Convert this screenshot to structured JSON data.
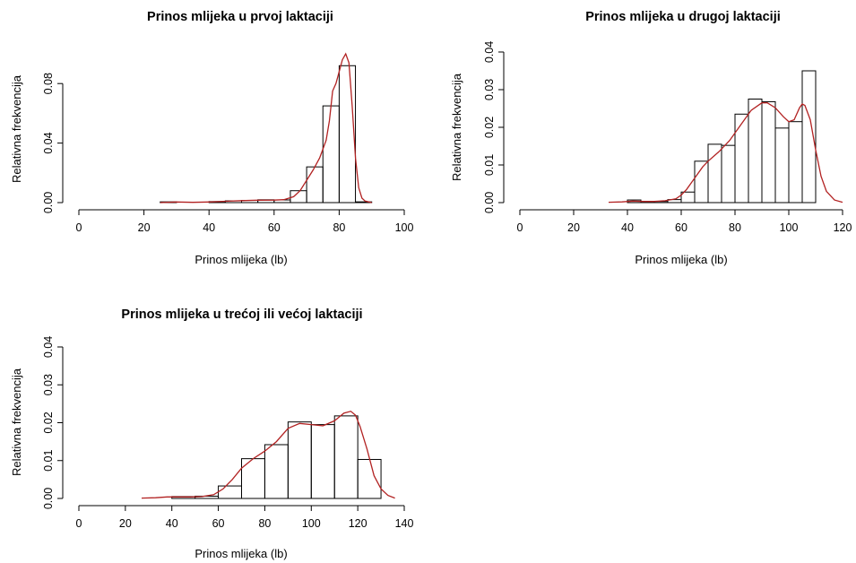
{
  "chart_data": [
    {
      "type": "histogram",
      "title": "Prinos mlijeka u prvoj laktaciji",
      "xlabel": "Prinos mlijeka (lb)",
      "ylabel": "Relativna frekvencija",
      "xlim": [
        0,
        100
      ],
      "ylim": [
        0,
        0.1
      ],
      "xticks": [
        "0",
        "20",
        "40",
        "60",
        "80",
        "100"
      ],
      "yticks": [
        "0.00",
        "0.04",
        "0.08"
      ],
      "bins": [
        {
          "from": 25,
          "to": 30,
          "value": 0.0005
        },
        {
          "from": 30,
          "to": 35,
          "value": 0.0
        },
        {
          "from": 35,
          "to": 40,
          "value": 0.0
        },
        {
          "from": 40,
          "to": 45,
          "value": 0.0007
        },
        {
          "from": 45,
          "to": 50,
          "value": 0.0012
        },
        {
          "from": 50,
          "to": 55,
          "value": 0.0015
        },
        {
          "from": 55,
          "to": 60,
          "value": 0.0019
        },
        {
          "from": 60,
          "to": 65,
          "value": 0.0018
        },
        {
          "from": 65,
          "to": 70,
          "value": 0.008
        },
        {
          "from": 70,
          "to": 75,
          "value": 0.024
        },
        {
          "from": 75,
          "to": 80,
          "value": 0.065
        },
        {
          "from": 80,
          "to": 85,
          "value": 0.092
        },
        {
          "from": 85,
          "to": 90,
          "value": 0.0005
        }
      ],
      "density": {
        "color": "#b22222",
        "x": [
          25,
          30,
          35,
          40,
          45,
          50,
          55,
          60,
          63,
          66,
          68,
          70,
          72,
          74,
          76,
          77,
          78,
          79,
          80,
          81,
          82,
          83,
          84,
          85,
          86,
          87,
          88,
          90
        ],
        "y": [
          0.0,
          0.0004,
          0.0002,
          0.0004,
          0.0009,
          0.0013,
          0.0016,
          0.0017,
          0.002,
          0.004,
          0.008,
          0.015,
          0.022,
          0.03,
          0.042,
          0.055,
          0.075,
          0.08,
          0.088,
          0.096,
          0.1,
          0.094,
          0.065,
          0.03,
          0.01,
          0.003,
          0.001,
          0.0
        ]
      }
    },
    {
      "type": "histogram",
      "title": "Prinos mlijeka u drugoj laktaciji",
      "xlabel": "Prinos mlijeka (lb)",
      "ylabel": "Relativna frekvencija",
      "xlim": [
        0,
        120
      ],
      "ylim": [
        0,
        0.04
      ],
      "xticks": [
        "0",
        "20",
        "40",
        "60",
        "80",
        "100",
        "120"
      ],
      "yticks": [
        "0.00",
        "0.01",
        "0.02",
        "0.03",
        "0.04"
      ],
      "bins": [
        {
          "from": 40,
          "to": 45,
          "value": 0.0007
        },
        {
          "from": 45,
          "to": 50,
          "value": 0.0003
        },
        {
          "from": 50,
          "to": 55,
          "value": 0.0003
        },
        {
          "from": 55,
          "to": 60,
          "value": 0.0008
        },
        {
          "from": 60,
          "to": 65,
          "value": 0.0028
        },
        {
          "from": 65,
          "to": 70,
          "value": 0.011
        },
        {
          "from": 70,
          "to": 75,
          "value": 0.0155
        },
        {
          "from": 75,
          "to": 80,
          "value": 0.0152
        },
        {
          "from": 80,
          "to": 85,
          "value": 0.0235
        },
        {
          "from": 85,
          "to": 90,
          "value": 0.0275
        },
        {
          "from": 90,
          "to": 95,
          "value": 0.0268
        },
        {
          "from": 95,
          "to": 100,
          "value": 0.0198
        },
        {
          "from": 100,
          "to": 105,
          "value": 0.0215
        },
        {
          "from": 105,
          "to": 110,
          "value": 0.035
        }
      ],
      "density": {
        "color": "#b22222",
        "x": [
          33,
          38,
          42,
          46,
          50,
          54,
          58,
          60,
          62,
          64,
          66,
          68,
          70,
          74,
          78,
          82,
          86,
          90,
          92,
          95,
          98,
          100,
          102,
          104,
          105,
          106,
          108,
          110,
          112,
          114,
          117,
          120
        ],
        "y": [
          0.0001,
          0.0002,
          0.0004,
          0.0003,
          0.0003,
          0.0005,
          0.001,
          0.002,
          0.0035,
          0.0055,
          0.0075,
          0.0095,
          0.011,
          0.0135,
          0.0165,
          0.0205,
          0.0245,
          0.0265,
          0.0265,
          0.0252,
          0.0228,
          0.0215,
          0.022,
          0.0252,
          0.0262,
          0.0258,
          0.022,
          0.014,
          0.007,
          0.003,
          0.0007,
          0.0001
        ]
      }
    },
    {
      "type": "histogram",
      "title": "Prinos mlijeka u trećoj ili većoj laktaciji",
      "xlabel": "Prinos mlijeka (lb)",
      "ylabel": "Relativna frekvencija",
      "xlim": [
        0,
        140
      ],
      "ylim": [
        0,
        0.04
      ],
      "xticks": [
        "0",
        "20",
        "40",
        "60",
        "80",
        "100",
        "120",
        "140"
      ],
      "yticks": [
        "0.00",
        "0.01",
        "0.02",
        "0.03",
        "0.04"
      ],
      "bins": [
        {
          "from": 40,
          "to": 50,
          "value": 0.0005
        },
        {
          "from": 50,
          "to": 60,
          "value": 0.0006
        },
        {
          "from": 60,
          "to": 70,
          "value": 0.0033
        },
        {
          "from": 70,
          "to": 80,
          "value": 0.0105
        },
        {
          "from": 80,
          "to": 90,
          "value": 0.0142
        },
        {
          "from": 90,
          "to": 100,
          "value": 0.0202
        },
        {
          "from": 100,
          "to": 110,
          "value": 0.0195
        },
        {
          "from": 110,
          "to": 120,
          "value": 0.0218
        },
        {
          "from": 120,
          "to": 130,
          "value": 0.0103
        }
      ],
      "density": {
        "color": "#b22222",
        "x": [
          27,
          33,
          38,
          43,
          48,
          53,
          58,
          62,
          66,
          70,
          75,
          80,
          85,
          90,
          95,
          100,
          105,
          110,
          114,
          117,
          119,
          121,
          124,
          127,
          130,
          133,
          136
        ],
        "y": [
          0.0001,
          0.0002,
          0.0004,
          0.0004,
          0.0004,
          0.0005,
          0.001,
          0.0025,
          0.005,
          0.008,
          0.0105,
          0.0125,
          0.015,
          0.0185,
          0.0198,
          0.0195,
          0.0192,
          0.0205,
          0.0225,
          0.023,
          0.022,
          0.019,
          0.013,
          0.006,
          0.0025,
          0.0008,
          0.0001
        ]
      }
    }
  ]
}
